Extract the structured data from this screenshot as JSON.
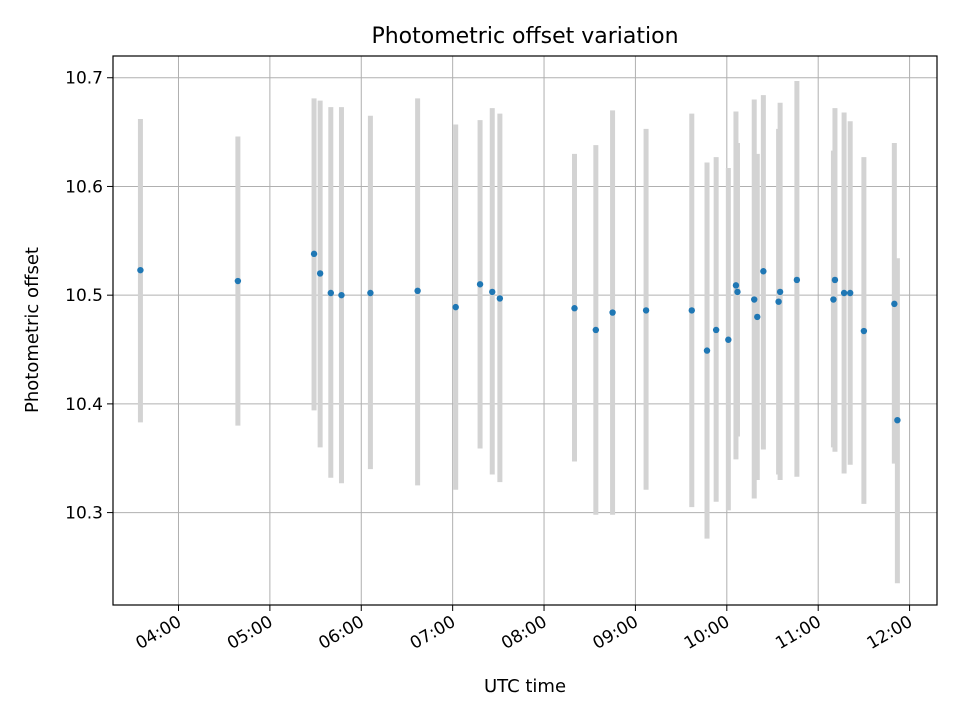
{
  "chart_data": {
    "type": "scatter",
    "title": "Photometric offset variation",
    "xlabel": "UTC time",
    "ylabel": "Photometric offset",
    "x_tick_labels": [
      "04:00",
      "05:00",
      "06:00",
      "07:00",
      "08:00",
      "09:00",
      "10:00",
      "11:00",
      "12:00"
    ],
    "y_tick_labels": [
      "10.3",
      "10.4",
      "10.5",
      "10.6",
      "10.7"
    ],
    "xlim": [
      "03:17",
      "12:18"
    ],
    "ylim": [
      10.215,
      10.72
    ],
    "grid": true,
    "colors": {
      "point": "#1f77b4",
      "errorbar": "#d3d3d3",
      "grid": "#b0b0b0"
    },
    "points": [
      {
        "time": "03:35",
        "offset": 10.523,
        "low": 10.383,
        "high": 10.662
      },
      {
        "time": "04:39",
        "offset": 10.513,
        "low": 10.38,
        "high": 10.646
      },
      {
        "time": "05:29",
        "offset": 10.538,
        "low": 10.394,
        "high": 10.681
      },
      {
        "time": "05:33",
        "offset": 10.52,
        "low": 10.36,
        "high": 10.679
      },
      {
        "time": "05:40",
        "offset": 10.502,
        "low": 10.332,
        "high": 10.673
      },
      {
        "time": "05:47",
        "offset": 10.5,
        "low": 10.327,
        "high": 10.673
      },
      {
        "time": "06:06",
        "offset": 10.502,
        "low": 10.34,
        "high": 10.665
      },
      {
        "time": "06:37",
        "offset": 10.504,
        "low": 10.325,
        "high": 10.681
      },
      {
        "time": "07:02",
        "offset": 10.489,
        "low": 10.321,
        "high": 10.657
      },
      {
        "time": "07:18",
        "offset": 10.51,
        "low": 10.359,
        "high": 10.661
      },
      {
        "time": "07:26",
        "offset": 10.503,
        "low": 10.335,
        "high": 10.672
      },
      {
        "time": "07:31",
        "offset": 10.497,
        "low": 10.328,
        "high": 10.667
      },
      {
        "time": "08:20",
        "offset": 10.488,
        "low": 10.347,
        "high": 10.63
      },
      {
        "time": "08:34",
        "offset": 10.468,
        "low": 10.298,
        "high": 10.638
      },
      {
        "time": "08:45",
        "offset": 10.484,
        "low": 10.298,
        "high": 10.67
      },
      {
        "time": "09:07",
        "offset": 10.486,
        "low": 10.321,
        "high": 10.653
      },
      {
        "time": "09:37",
        "offset": 10.486,
        "low": 10.305,
        "high": 10.667
      },
      {
        "time": "09:47",
        "offset": 10.449,
        "low": 10.276,
        "high": 10.622
      },
      {
        "time": "09:53",
        "offset": 10.468,
        "low": 10.31,
        "high": 10.627
      },
      {
        "time": "10:01",
        "offset": 10.459,
        "low": 10.302,
        "high": 10.617
      },
      {
        "time": "10:06",
        "offset": 10.509,
        "low": 10.349,
        "high": 10.669
      },
      {
        "time": "10:07",
        "offset": 10.503,
        "low": 10.37,
        "high": 10.64
      },
      {
        "time": "10:18",
        "offset": 10.496,
        "low": 10.313,
        "high": 10.68
      },
      {
        "time": "10:20",
        "offset": 10.48,
        "low": 10.33,
        "high": 10.63
      },
      {
        "time": "10:24",
        "offset": 10.522,
        "low": 10.358,
        "high": 10.684
      },
      {
        "time": "10:34",
        "offset": 10.494,
        "low": 10.335,
        "high": 10.653
      },
      {
        "time": "10:35",
        "offset": 10.503,
        "low": 10.33,
        "high": 10.677
      },
      {
        "time": "10:46",
        "offset": 10.514,
        "low": 10.333,
        "high": 10.697
      },
      {
        "time": "11:10",
        "offset": 10.496,
        "low": 10.36,
        "high": 10.633
      },
      {
        "time": "11:11",
        "offset": 10.514,
        "low": 10.356,
        "high": 10.672
      },
      {
        "time": "11:17",
        "offset": 10.502,
        "low": 10.336,
        "high": 10.668
      },
      {
        "time": "11:21",
        "offset": 10.502,
        "low": 10.344,
        "high": 10.66
      },
      {
        "time": "11:30",
        "offset": 10.467,
        "low": 10.308,
        "high": 10.627
      },
      {
        "time": "11:50",
        "offset": 10.492,
        "low": 10.345,
        "high": 10.64
      },
      {
        "time": "11:52",
        "offset": 10.385,
        "low": 10.235,
        "high": 10.534
      }
    ]
  }
}
